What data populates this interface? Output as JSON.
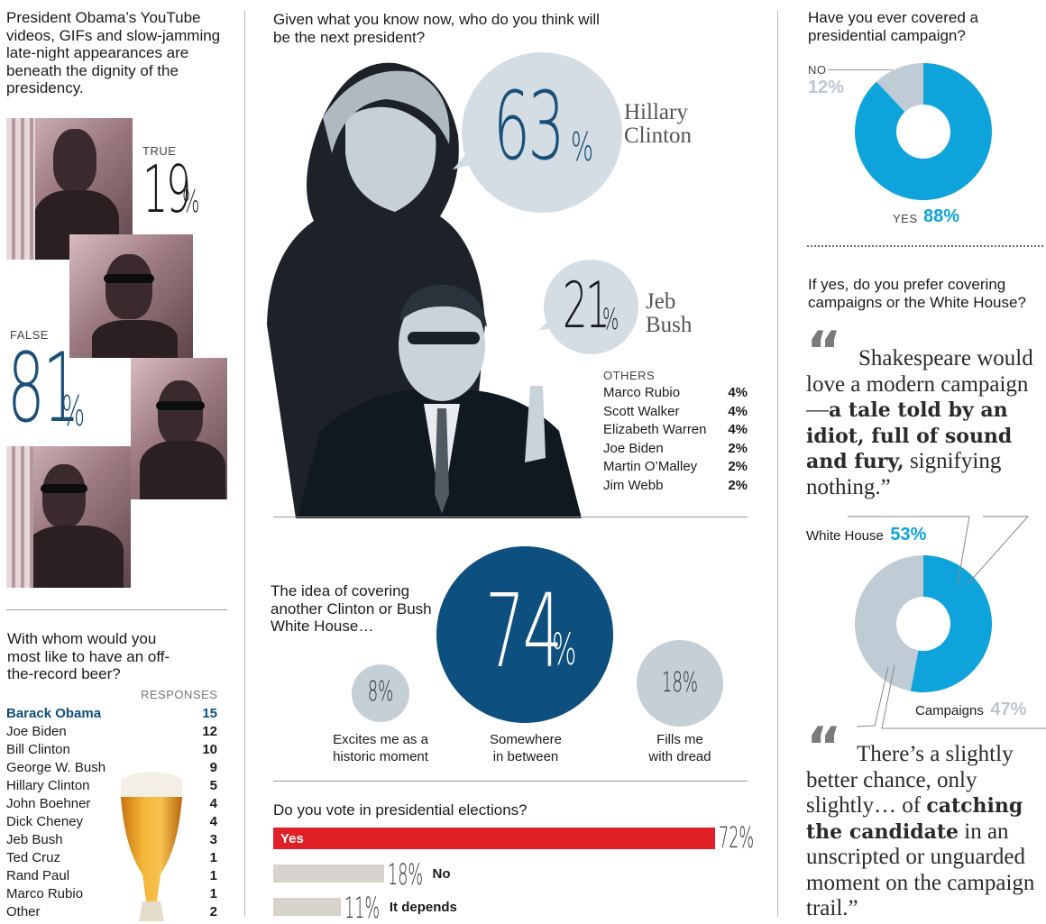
{
  "col1": {
    "q1": {
      "question": "President Obama’s YouTube videos, GIFs and slow-jamming late-night appearances are beneath the dignity of the presidency.",
      "true_label": "TRUE",
      "true_value": "19",
      "false_label": "FALSE",
      "false_value": "81",
      "pct_sign": "%"
    },
    "q2": {
      "question": "With whom would you most like to have an off-the-record beer?",
      "responses_label": "RESPONSES",
      "rows": [
        {
          "name": "Barack Obama",
          "value": "15"
        },
        {
          "name": "Joe Biden",
          "value": "12"
        },
        {
          "name": "Bill Clinton",
          "value": "10"
        },
        {
          "name": "George W. Bush",
          "value": "9"
        },
        {
          "name": "Hillary Clinton",
          "value": "5"
        },
        {
          "name": "John Boehner",
          "value": "4"
        },
        {
          "name": "Dick Cheney",
          "value": "4"
        },
        {
          "name": "Jeb Bush",
          "value": "3"
        },
        {
          "name": "Ted Cruz",
          "value": "1"
        },
        {
          "name": "Rand Paul",
          "value": "1"
        },
        {
          "name": "Marco Rubio",
          "value": "1"
        },
        {
          "name": "Other",
          "value": "2"
        }
      ]
    }
  },
  "col2": {
    "q3": {
      "question": "Given what you know now, who do you think will be the next president?",
      "hillary_value": "63",
      "hillary_first": "Hillary",
      "hillary_last": "Clinton",
      "jeb_value": "21",
      "jeb_first": "Jeb",
      "jeb_last": "Bush",
      "others_label": "OTHERS",
      "others": [
        {
          "name": "Marco Rubio",
          "value": "4%"
        },
        {
          "name": "Scott Walker",
          "value": "4%"
        },
        {
          "name": "Elizabeth Warren",
          "value": "4%"
        },
        {
          "name": "Joe Biden",
          "value": "2%"
        },
        {
          "name": "Martin O’Malley",
          "value": "2%"
        },
        {
          "name": "Jim Webb",
          "value": "2%"
        }
      ]
    },
    "q4": {
      "question": "The idea of covering another Clinton or Bush White House…",
      "big_value": "74",
      "big_label_1": "Somewhere",
      "big_label_2": "in between",
      "left_value": "8%",
      "left_label_1": "Excites me as a",
      "left_label_2": "historic moment",
      "right_value": "18%",
      "right_label_1": "Fills me",
      "right_label_2": "with dread"
    },
    "q5": {
      "question": "Do you vote in presidential elections?",
      "bars": [
        {
          "label": "Yes",
          "value": 72,
          "value_text": "72%"
        },
        {
          "label": "No",
          "value": 18,
          "value_text": "18%"
        },
        {
          "label": "It depends",
          "value": 11,
          "value_text": "11%"
        }
      ]
    }
  },
  "col3": {
    "q6": {
      "question": "Have you ever covered a presidential campaign?",
      "no_label": "NO",
      "no_value": "12%",
      "yes_label": "YES",
      "yes_value": "88%"
    },
    "q7": {
      "question": "If yes, do you prefer covering campaigns or the White House?",
      "quote1_pre": "Shakespeare would love a modern campaign—",
      "quote1_bold": "a tale told by an idiot, full of sound and fury,",
      "quote1_post": "signifying nothing.”",
      "wh_label": "White House",
      "wh_value": "53%",
      "camp_label": "Campaigns",
      "camp_value": "47%",
      "quote2_pre": "There’s a slightly better chance, only slightly… of",
      "quote2_bold": "catching the candidate",
      "quote2_post": "in an unscripted or unguarded moment on the campaign trail.”"
    }
  },
  "colors": {
    "accent_blue": "#0fa3dc",
    "navy": "#0d4f7e",
    "light_blue_gray": "#c0ccd5",
    "bubble": "#d3dde3",
    "red": "#e01f26",
    "bar_gray": "#d6d3cc"
  },
  "chart_data": [
    {
      "type": "pie",
      "categories": [
        "TRUE",
        "FALSE"
      ],
      "values": [
        19,
        81
      ]
    },
    {
      "type": "bar",
      "categories": [
        "Barack Obama",
        "Joe Biden",
        "Bill Clinton",
        "George W. Bush",
        "Hillary Clinton",
        "John Boehner",
        "Dick Cheney",
        "Jeb Bush",
        "Ted Cruz",
        "Rand Paul",
        "Marco Rubio",
        "Other"
      ],
      "values": [
        15,
        12,
        10,
        9,
        5,
        4,
        4,
        3,
        1,
        1,
        1,
        2
      ]
    },
    {
      "type": "bar",
      "categories": [
        "Hillary Clinton",
        "Jeb Bush",
        "Marco Rubio",
        "Scott Walker",
        "Elizabeth Warren",
        "Joe Biden",
        "Martin O’Malley",
        "Jim Webb"
      ],
      "values": [
        63,
        21,
        4,
        4,
        4,
        2,
        2,
        2
      ]
    },
    {
      "type": "bar",
      "categories": [
        "Excites me as a historic moment",
        "Somewhere in between",
        "Fills me with dread"
      ],
      "values": [
        8,
        74,
        18
      ]
    },
    {
      "type": "bar",
      "categories": [
        "Yes",
        "No",
        "It depends"
      ],
      "values": [
        72,
        18,
        11
      ]
    },
    {
      "type": "pie",
      "categories": [
        "YES",
        "NO"
      ],
      "values": [
        88,
        12
      ]
    },
    {
      "type": "pie",
      "categories": [
        "White House",
        "Campaigns"
      ],
      "values": [
        53,
        47
      ]
    }
  ]
}
